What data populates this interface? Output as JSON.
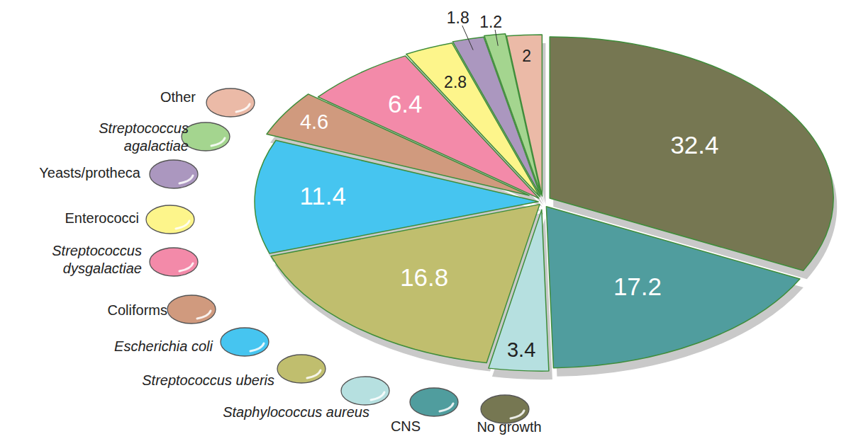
{
  "chart_data": {
    "type": "pie",
    "categories": [
      "Other",
      "Streptococcus agalactiae",
      "Yeasts/protheca",
      "Enterococci",
      "Streptococcus dysgalactiae",
      "Coliforms",
      "Escherichia coli",
      "Streptococcus uberis",
      "Staphylococcus aureus",
      "CNS",
      "No growth"
    ],
    "values": [
      2,
      1.2,
      1.8,
      2.8,
      6.4,
      4.6,
      11.4,
      16.8,
      3.4,
      17.2,
      32.4
    ],
    "colors": [
      "#ebbaa7",
      "#a4d58f",
      "#ab97bf",
      "#fdf58b",
      "#f38aa9",
      "#d09a7e",
      "#46c5f0",
      "#c0be6e",
      "#b6e0e0",
      "#509d9e",
      "#767752"
    ],
    "data_labels": true,
    "legend": "left"
  }
}
